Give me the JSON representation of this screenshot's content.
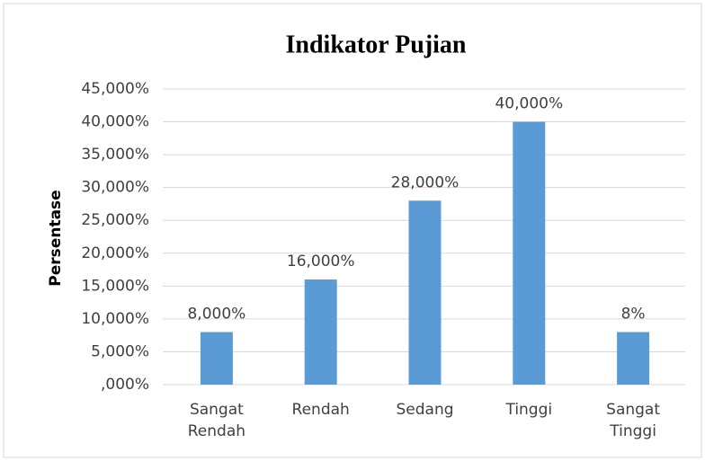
{
  "chart_data": {
    "type": "bar",
    "title": "Indikator Pujian",
    "y_label": "Persentase",
    "categories": [
      "Sangat Rendah",
      "Rendah",
      "Sedang",
      "Tinggi",
      "Sangat Tinggi"
    ],
    "values": [
      8,
      16,
      28,
      40,
      8
    ],
    "value_labels": [
      "8,000%",
      "16,000%",
      "28,000%",
      "40,000%",
      "8%"
    ],
    "color": "#5b9bd5",
    "ylim": [
      0,
      45
    ],
    "yticks": [
      {
        "value": 0,
        "label": ",000%"
      },
      {
        "value": 5,
        "label": "5,000%"
      },
      {
        "value": 10,
        "label": "10,000%"
      },
      {
        "value": 15,
        "label": "15,000%"
      },
      {
        "value": 20,
        "label": "20,000%"
      },
      {
        "value": 25,
        "label": "25,000%"
      },
      {
        "value": 30,
        "label": "30,000%"
      },
      {
        "value": 35,
        "label": "35,000%"
      },
      {
        "value": 40,
        "label": "40,000%"
      },
      {
        "value": 45,
        "label": "45,000%"
      }
    ],
    "grid": true
  }
}
